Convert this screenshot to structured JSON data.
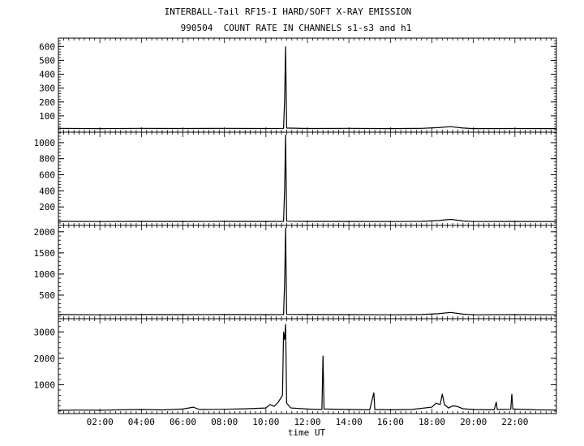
{
  "title_line1": "INTERBALL-Tail RF15-I HARD/SOFT X-RAY EMISSION",
  "title_line2": "990504  COUNT RATE IN CHANNELS s1-s3 and h1",
  "chart_data": {
    "type": "line",
    "xlabel": "time UT",
    "x_ticks": [
      "02:00",
      "04:00",
      "06:00",
      "08:00",
      "10:00",
      "12:00",
      "14:00",
      "16:00",
      "18:00",
      "20:00",
      "22:00"
    ],
    "xlim_hours": [
      0,
      24
    ],
    "panels": [
      {
        "channel": "s1",
        "ylim": [
          0,
          660
        ],
        "yticks": [
          100,
          200,
          300,
          400,
          500,
          600
        ],
        "points": [
          [
            0,
            10
          ],
          [
            2,
            8
          ],
          [
            4,
            10
          ],
          [
            6,
            9
          ],
          [
            8,
            10
          ],
          [
            10,
            9
          ],
          [
            10.85,
            10
          ],
          [
            10.9,
            220
          ],
          [
            10.95,
            600
          ],
          [
            11.0,
            12
          ],
          [
            12,
            9
          ],
          [
            14,
            10
          ],
          [
            16,
            8
          ],
          [
            17.5,
            10
          ],
          [
            18.3,
            15
          ],
          [
            18.9,
            22
          ],
          [
            19.5,
            12
          ],
          [
            20,
            8
          ],
          [
            22,
            9
          ],
          [
            24,
            8
          ]
        ]
      },
      {
        "channel": "s2",
        "ylim": [
          0,
          1130
        ],
        "yticks": [
          200,
          400,
          600,
          800,
          1000
        ],
        "points": [
          [
            0,
            20
          ],
          [
            2,
            18
          ],
          [
            4,
            20
          ],
          [
            6,
            19
          ],
          [
            8,
            20
          ],
          [
            10,
            19
          ],
          [
            10.85,
            20
          ],
          [
            10.9,
            420
          ],
          [
            10.95,
            1100
          ],
          [
            11.0,
            22
          ],
          [
            12,
            20
          ],
          [
            14,
            19
          ],
          [
            16,
            18
          ],
          [
            17.5,
            20
          ],
          [
            18.3,
            30
          ],
          [
            18.9,
            45
          ],
          [
            19.5,
            25
          ],
          [
            20,
            18
          ],
          [
            22,
            19
          ],
          [
            24,
            18
          ]
        ]
      },
      {
        "channel": "s3",
        "ylim": [
          0,
          2150
        ],
        "yticks": [
          500,
          1000,
          1500,
          2000
        ],
        "points": [
          [
            0,
            40
          ],
          [
            2,
            35
          ],
          [
            4,
            40
          ],
          [
            6,
            38
          ],
          [
            8,
            40
          ],
          [
            10,
            38
          ],
          [
            10.85,
            40
          ],
          [
            10.9,
            800
          ],
          [
            10.95,
            2100
          ],
          [
            11.0,
            45
          ],
          [
            12,
            40
          ],
          [
            14,
            38
          ],
          [
            16,
            35
          ],
          [
            17.5,
            40
          ],
          [
            18.3,
            60
          ],
          [
            18.9,
            90
          ],
          [
            19.5,
            50
          ],
          [
            20,
            35
          ],
          [
            22,
            38
          ],
          [
            24,
            35
          ]
        ]
      },
      {
        "channel": "h1",
        "ylim": [
          0,
          3500
        ],
        "yticks": [
          1000,
          2000,
          3000
        ],
        "points": [
          [
            0,
            30
          ],
          [
            1,
            40
          ],
          [
            2,
            35
          ],
          [
            3,
            50
          ],
          [
            4,
            60
          ],
          [
            5,
            45
          ],
          [
            6,
            80
          ],
          [
            6.5,
            150
          ],
          [
            6.8,
            60
          ],
          [
            8,
            70
          ],
          [
            9,
            90
          ],
          [
            10,
            120
          ],
          [
            10.2,
            250
          ],
          [
            10.4,
            180
          ],
          [
            10.6,
            350
          ],
          [
            10.8,
            600
          ],
          [
            10.85,
            3000
          ],
          [
            10.9,
            2700
          ],
          [
            10.95,
            3300
          ],
          [
            11.0,
            300
          ],
          [
            11.2,
            120
          ],
          [
            12,
            80
          ],
          [
            12.7,
            60
          ],
          [
            12.75,
            2100
          ],
          [
            12.8,
            80
          ],
          [
            14,
            60
          ],
          [
            15,
            50
          ],
          [
            15.2,
            700
          ],
          [
            15.25,
            60
          ],
          [
            16,
            50
          ],
          [
            17,
            60
          ],
          [
            18,
            150
          ],
          [
            18.2,
            300
          ],
          [
            18.4,
            250
          ],
          [
            18.5,
            650
          ],
          [
            18.6,
            250
          ],
          [
            18.8,
            120
          ],
          [
            19.0,
            200
          ],
          [
            19.2,
            180
          ],
          [
            19.5,
            90
          ],
          [
            20,
            60
          ],
          [
            21,
            50
          ],
          [
            21.1,
            350
          ],
          [
            21.15,
            60
          ],
          [
            21.8,
            70
          ],
          [
            21.85,
            650
          ],
          [
            21.9,
            80
          ],
          [
            23,
            50
          ],
          [
            24,
            40
          ]
        ]
      }
    ]
  }
}
